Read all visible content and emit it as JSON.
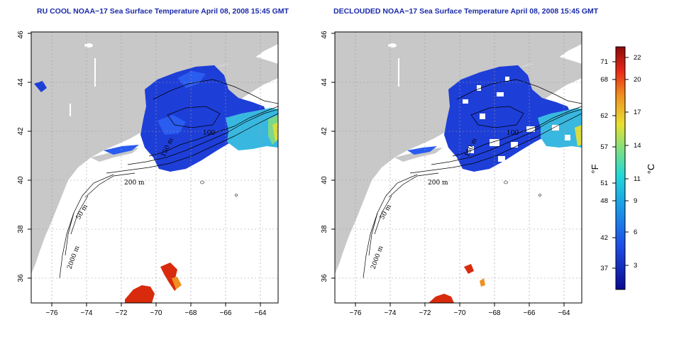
{
  "panels": [
    {
      "title": "RU COOL NOAA−17 Sea Surface Temperature April 08, 2008 15:45 GMT"
    },
    {
      "title": "DECLOUDED NOAA−17 Sea Surface Temperature April 08, 2008 15:45 GMT"
    }
  ],
  "axes": {
    "x_ticks": [
      "−76",
      "−74",
      "−72",
      "−70",
      "−68",
      "−66",
      "−64"
    ],
    "y_ticks": [
      "36",
      "38",
      "40",
      "42",
      "44",
      "46"
    ]
  },
  "contour_labels": {
    "c50": "50 m",
    "c200": "200 m",
    "c2000": "2000 m",
    "c100": "100",
    "c150": "150 m"
  },
  "colorbar": {
    "unit_f": "°F",
    "unit_c": "°C",
    "f_ticks": [
      "37",
      "42",
      "48",
      "51",
      "57",
      "62",
      "68",
      "71"
    ],
    "c_ticks": [
      "3",
      "6",
      "9",
      "11",
      "14",
      "17",
      "20",
      "22"
    ]
  },
  "colors": {
    "land": "#c8c8c8",
    "cold": "#1e3ed8",
    "mid": "#38b8e0",
    "warm": "#d82a0c"
  }
}
